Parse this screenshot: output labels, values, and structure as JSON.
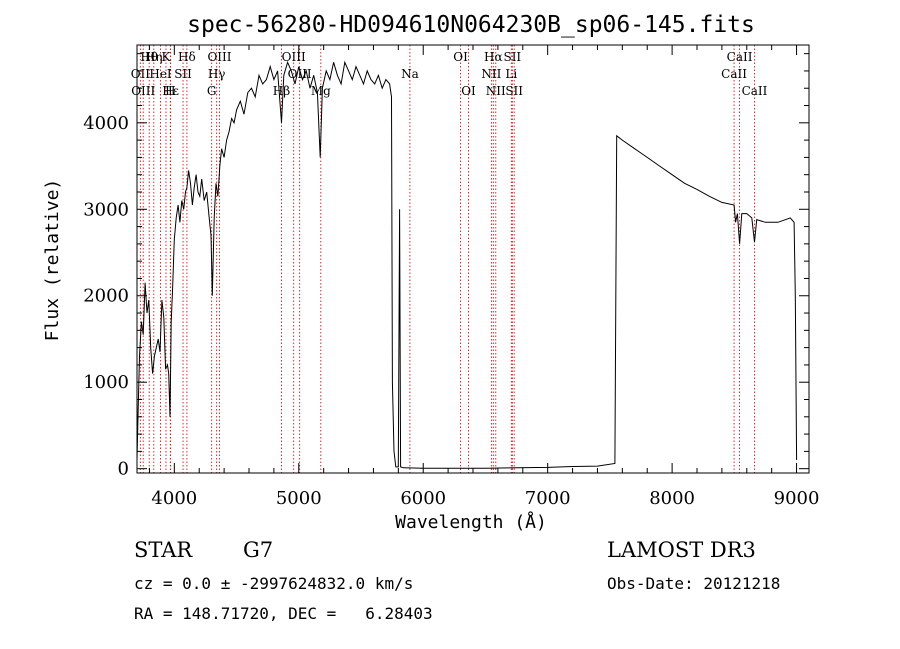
{
  "chart_data": {
    "type": "line",
    "title": "spec-56280-HD094610N064230B_sp06-145.fits",
    "xlabel": "Wavelength (Å)",
    "ylabel": "Flux (relative)",
    "xlim": [
      3700,
      9100
    ],
    "ylim": [
      -50,
      4900
    ],
    "x_ticks": [
      4000,
      5000,
      6000,
      7000,
      8000,
      9000
    ],
    "y_ticks": [
      0,
      1000,
      2000,
      3000,
      4000
    ],
    "series": [
      {
        "name": "spectrum",
        "points": [
          [
            3700,
            100
          ],
          [
            3710,
            700
          ],
          [
            3720,
            1300
          ],
          [
            3735,
            1700
          ],
          [
            3750,
            1550
          ],
          [
            3765,
            2150
          ],
          [
            3780,
            1800
          ],
          [
            3795,
            1950
          ],
          [
            3810,
            1400
          ],
          [
            3825,
            1100
          ],
          [
            3840,
            1300
          ],
          [
            3855,
            1400
          ],
          [
            3870,
            1500
          ],
          [
            3885,
            1350
          ],
          [
            3900,
            1950
          ],
          [
            3915,
            1750
          ],
          [
            3930,
            1150
          ],
          [
            3945,
            1200
          ],
          [
            3955,
            1100
          ],
          [
            3965,
            600
          ],
          [
            3975,
            1700
          ],
          [
            3985,
            2050
          ],
          [
            4000,
            2650
          ],
          [
            4015,
            2900
          ],
          [
            4030,
            3050
          ],
          [
            4045,
            2850
          ],
          [
            4060,
            3100
          ],
          [
            4075,
            3000
          ],
          [
            4090,
            3200
          ],
          [
            4101,
            3250
          ],
          [
            4115,
            3450
          ],
          [
            4130,
            3300
          ],
          [
            4145,
            3050
          ],
          [
            4160,
            3250
          ],
          [
            4175,
            3400
          ],
          [
            4190,
            3200
          ],
          [
            4205,
            3150
          ],
          [
            4220,
            3350
          ],
          [
            4240,
            3100
          ],
          [
            4260,
            3200
          ],
          [
            4280,
            2900
          ],
          [
            4295,
            2700
          ],
          [
            4305,
            2000
          ],
          [
            4320,
            2900
          ],
          [
            4335,
            3300
          ],
          [
            4350,
            3150
          ],
          [
            4365,
            3500
          ],
          [
            4380,
            3700
          ],
          [
            4400,
            3600
          ],
          [
            4420,
            3800
          ],
          [
            4440,
            3900
          ],
          [
            4460,
            4050
          ],
          [
            4480,
            4000
          ],
          [
            4500,
            4150
          ],
          [
            4530,
            4250
          ],
          [
            4560,
            4100
          ],
          [
            4590,
            4350
          ],
          [
            4620,
            4400
          ],
          [
            4650,
            4300
          ],
          [
            4680,
            4550
          ],
          [
            4710,
            4450
          ],
          [
            4740,
            4500
          ],
          [
            4770,
            4650
          ],
          [
            4800,
            4500
          ],
          [
            4830,
            4600
          ],
          [
            4861,
            4000
          ],
          [
            4880,
            4550
          ],
          [
            4910,
            4700
          ],
          [
            4940,
            4600
          ],
          [
            4970,
            4450
          ],
          [
            5000,
            4650
          ],
          [
            5030,
            4500
          ],
          [
            5060,
            4600
          ],
          [
            5090,
            4400
          ],
          [
            5120,
            4550
          ],
          [
            5150,
            4350
          ],
          [
            5172,
            3600
          ],
          [
            5190,
            4400
          ],
          [
            5220,
            4600
          ],
          [
            5250,
            4500
          ],
          [
            5280,
            4700
          ],
          [
            5310,
            4550
          ],
          [
            5340,
            4450
          ],
          [
            5370,
            4700
          ],
          [
            5400,
            4600
          ],
          [
            5430,
            4500
          ],
          [
            5460,
            4650
          ],
          [
            5490,
            4550
          ],
          [
            5520,
            4450
          ],
          [
            5550,
            4600
          ],
          [
            5580,
            4500
          ],
          [
            5610,
            4450
          ],
          [
            5640,
            4550
          ],
          [
            5670,
            4400
          ],
          [
            5700,
            4500
          ],
          [
            5730,
            4450
          ],
          [
            5745,
            4300
          ],
          [
            5752,
            1000
          ],
          [
            5765,
            200
          ],
          [
            5780,
            20
          ],
          [
            5800,
            20
          ],
          [
            5810,
            3000
          ],
          [
            5818,
            20
          ],
          [
            5840,
            10
          ],
          [
            6000,
            5
          ],
          [
            6500,
            5
          ],
          [
            7000,
            15
          ],
          [
            7200,
            25
          ],
          [
            7400,
            30
          ],
          [
            7540,
            60
          ],
          [
            7555,
            3850
          ],
          [
            7600,
            3800
          ],
          [
            7700,
            3700
          ],
          [
            7800,
            3600
          ],
          [
            7900,
            3500
          ],
          [
            8000,
            3400
          ],
          [
            8100,
            3300
          ],
          [
            8200,
            3230
          ],
          [
            8300,
            3150
          ],
          [
            8400,
            3080
          ],
          [
            8498,
            3050
          ],
          [
            8510,
            2850
          ],
          [
            8525,
            2950
          ],
          [
            8542,
            2600
          ],
          [
            8560,
            2950
          ],
          [
            8600,
            2950
          ],
          [
            8640,
            2900
          ],
          [
            8662,
            2620
          ],
          [
            8680,
            2880
          ],
          [
            8750,
            2850
          ],
          [
            8850,
            2850
          ],
          [
            8950,
            2900
          ],
          [
            8980,
            2850
          ],
          [
            8990,
            2000
          ],
          [
            9000,
            100
          ]
        ]
      }
    ],
    "lines": [
      {
        "wl": 3727,
        "label": "OII",
        "row": 2
      },
      {
        "wl": 3750,
        "label": "OIII",
        "row": 3
      },
      {
        "wl": 3798,
        "label": "Hθ",
        "row": 1
      },
      {
        "wl": 3835,
        "label": "Hη",
        "row": 1
      },
      {
        "wl": 3889,
        "label": "HeI",
        "row": 2
      },
      {
        "wl": 3933,
        "label": "K",
        "row": 1
      },
      {
        "wl": 3970,
        "label": "Hε",
        "row": 3
      },
      {
        "wl": 3968,
        "label": "H",
        "row": 3
      },
      {
        "wl": 4070,
        "label": "SII",
        "row": 2
      },
      {
        "wl": 4101,
        "label": "Hδ",
        "row": 1
      },
      {
        "wl": 4300,
        "label": "G",
        "row": 3
      },
      {
        "wl": 4340,
        "label": "Hγ",
        "row": 2
      },
      {
        "wl": 4363,
        "label": "OIII",
        "row": 1
      },
      {
        "wl": 4861,
        "label": "Hβ",
        "row": 3
      },
      {
        "wl": 4959,
        "label": "OIII",
        "row": 1
      },
      {
        "wl": 5007,
        "label": "OIII",
        "row": 2
      },
      {
        "wl": 5177,
        "label": "Mg",
        "row": 3
      },
      {
        "wl": 5893,
        "label": "Na",
        "row": 2
      },
      {
        "wl": 6300,
        "label": "OI",
        "row": 1
      },
      {
        "wl": 6364,
        "label": "OI",
        "row": 3
      },
      {
        "wl": 6548,
        "label": "NII",
        "row": 2
      },
      {
        "wl": 6563,
        "label": "Hα",
        "row": 1
      },
      {
        "wl": 6583,
        "label": "NII",
        "row": 3
      },
      {
        "wl": 6708,
        "label": "Li",
        "row": 2
      },
      {
        "wl": 6716,
        "label": "SII",
        "row": 1
      },
      {
        "wl": 6731,
        "label": "SII",
        "row": 3
      },
      {
        "wl": 8498,
        "label": "CaII",
        "row": 2
      },
      {
        "wl": 8542,
        "label": "CaII",
        "row": 1
      },
      {
        "wl": 8662,
        "label": "CaII",
        "row": 3
      }
    ]
  },
  "info": {
    "object_type": "STAR",
    "subclass": "G7",
    "survey": "LAMOST DR3",
    "redshift_line": "cz = 0.0 ± -2997624832.0 km/s",
    "obs_date_line": "Obs-Date: 20121218",
    "coords_line": "RA = 148.71720, DEC =   6.28403"
  }
}
